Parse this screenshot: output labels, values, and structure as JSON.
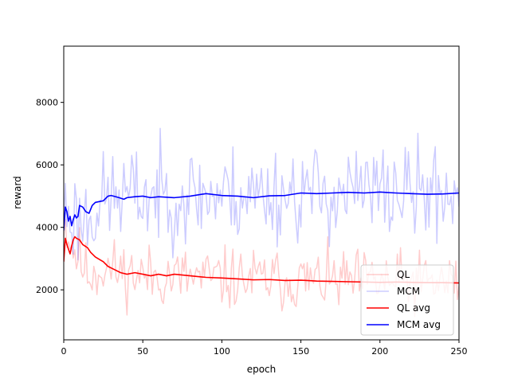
{
  "chart_data": {
    "type": "line",
    "title": "",
    "xlabel": "epoch",
    "ylabel": "reward",
    "xlim": [
      0,
      250
    ],
    "ylim": [
      400,
      9800
    ],
    "xticks": [
      0,
      50,
      100,
      150,
      200,
      250
    ],
    "yticks": [
      2000,
      4000,
      6000,
      8000
    ],
    "grid": false,
    "legend_position": "bottom-right",
    "series": [
      {
        "name": "QL",
        "color": "#ff0000",
        "alpha": 0.2,
        "style": "raw",
        "seed": 11,
        "anchors": [
          [
            0,
            4300
          ],
          [
            5,
            3400
          ],
          [
            10,
            3000
          ],
          [
            15,
            2500
          ],
          [
            25,
            2700
          ],
          [
            50,
            2450
          ],
          [
            100,
            2350
          ],
          [
            150,
            2300
          ],
          [
            200,
            2250
          ],
          [
            250,
            2220
          ]
        ],
        "noise": 900,
        "min": 450,
        "max": 5000
      },
      {
        "name": "MCM",
        "color": "#0000ff",
        "alpha": 0.2,
        "style": "raw",
        "seed": 23,
        "anchors": [
          [
            0,
            4600
          ],
          [
            10,
            4200
          ],
          [
            30,
            5000
          ],
          [
            100,
            5050
          ],
          [
            150,
            5100
          ],
          [
            200,
            5120
          ],
          [
            250,
            5100
          ]
        ],
        "noise": 1400,
        "min": 1800,
        "max": 9800
      },
      {
        "name": "QL avg",
        "color": "#ff0000",
        "alpha": 1,
        "style": "avg",
        "points": [
          [
            0,
            2900
          ],
          [
            1,
            3650
          ],
          [
            2,
            3450
          ],
          [
            3,
            3300
          ],
          [
            4,
            3150
          ],
          [
            5,
            3400
          ],
          [
            6,
            3600
          ],
          [
            7,
            3700
          ],
          [
            8,
            3650
          ],
          [
            10,
            3600
          ],
          [
            12,
            3450
          ],
          [
            15,
            3350
          ],
          [
            17,
            3200
          ],
          [
            20,
            3050
          ],
          [
            25,
            2900
          ],
          [
            28,
            2750
          ],
          [
            32,
            2650
          ],
          [
            36,
            2550
          ],
          [
            40,
            2500
          ],
          [
            45,
            2550
          ],
          [
            50,
            2500
          ],
          [
            55,
            2450
          ],
          [
            60,
            2500
          ],
          [
            65,
            2450
          ],
          [
            70,
            2500
          ],
          [
            80,
            2450
          ],
          [
            90,
            2400
          ],
          [
            100,
            2380
          ],
          [
            110,
            2350
          ],
          [
            120,
            2320
          ],
          [
            130,
            2330
          ],
          [
            140,
            2300
          ],
          [
            150,
            2310
          ],
          [
            160,
            2280
          ],
          [
            170,
            2270
          ],
          [
            180,
            2260
          ],
          [
            190,
            2250
          ],
          [
            200,
            2240
          ],
          [
            210,
            2250
          ],
          [
            220,
            2240
          ],
          [
            230,
            2230
          ],
          [
            240,
            2230
          ],
          [
            250,
            2220
          ]
        ]
      },
      {
        "name": "MCM avg",
        "color": "#0000ff",
        "alpha": 1,
        "style": "avg",
        "points": [
          [
            0,
            3900
          ],
          [
            1,
            4650
          ],
          [
            2,
            4500
          ],
          [
            3,
            4200
          ],
          [
            4,
            4350
          ],
          [
            5,
            4050
          ],
          [
            6,
            4250
          ],
          [
            7,
            4400
          ],
          [
            8,
            4300
          ],
          [
            9,
            4350
          ],
          [
            10,
            4700
          ],
          [
            12,
            4650
          ],
          [
            14,
            4500
          ],
          [
            16,
            4450
          ],
          [
            18,
            4700
          ],
          [
            20,
            4800
          ],
          [
            25,
            4850
          ],
          [
            28,
            5000
          ],
          [
            30,
            5020
          ],
          [
            35,
            4950
          ],
          [
            38,
            4900
          ],
          [
            40,
            4950
          ],
          [
            45,
            4980
          ],
          [
            50,
            5000
          ],
          [
            55,
            4950
          ],
          [
            60,
            4980
          ],
          [
            70,
            4950
          ],
          [
            80,
            5000
          ],
          [
            90,
            5080
          ],
          [
            100,
            5020
          ],
          [
            110,
            5000
          ],
          [
            120,
            4950
          ],
          [
            130,
            5010
          ],
          [
            140,
            5020
          ],
          [
            150,
            5100
          ],
          [
            160,
            5080
          ],
          [
            170,
            5100
          ],
          [
            180,
            5120
          ],
          [
            190,
            5100
          ],
          [
            200,
            5130
          ],
          [
            210,
            5100
          ],
          [
            220,
            5080
          ],
          [
            230,
            5060
          ],
          [
            240,
            5070
          ],
          [
            250,
            5100
          ]
        ]
      }
    ]
  }
}
